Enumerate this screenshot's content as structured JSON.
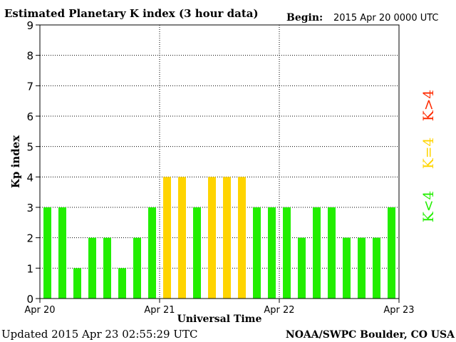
{
  "chart_data": {
    "type": "bar",
    "title": "Estimated Planetary K index (3 hour data)",
    "begin_label": "Begin:",
    "begin_value": "2015 Apr 20 0000 UTC",
    "xlabel": "Universal Time",
    "ylabel": "Kp index",
    "ylim": [
      0,
      9
    ],
    "y_ticks": [
      "0",
      "1",
      "2",
      "3",
      "4",
      "5",
      "6",
      "7",
      "8",
      "9"
    ],
    "x_ticks": [
      "Apr 20",
      "Apr 21",
      "Apr 22",
      "Apr 23"
    ],
    "grid": true,
    "values": [
      3,
      3,
      1,
      2,
      2,
      1,
      2,
      3,
      4,
      4,
      3,
      4,
      4,
      4,
      3,
      3,
      3,
      2,
      3,
      3,
      2,
      2,
      2,
      3
    ],
    "legend": [
      {
        "label": "K<4",
        "color": "#22ee00"
      },
      {
        "label": "K=4",
        "color": "#ffd400"
      },
      {
        "label": "K>4",
        "color": "#ff2a00"
      }
    ],
    "updated_text": "Updated 2015 Apr 23 02:55:29 UTC",
    "source_text": "NOAA/SWPC Boulder, CO USA"
  }
}
